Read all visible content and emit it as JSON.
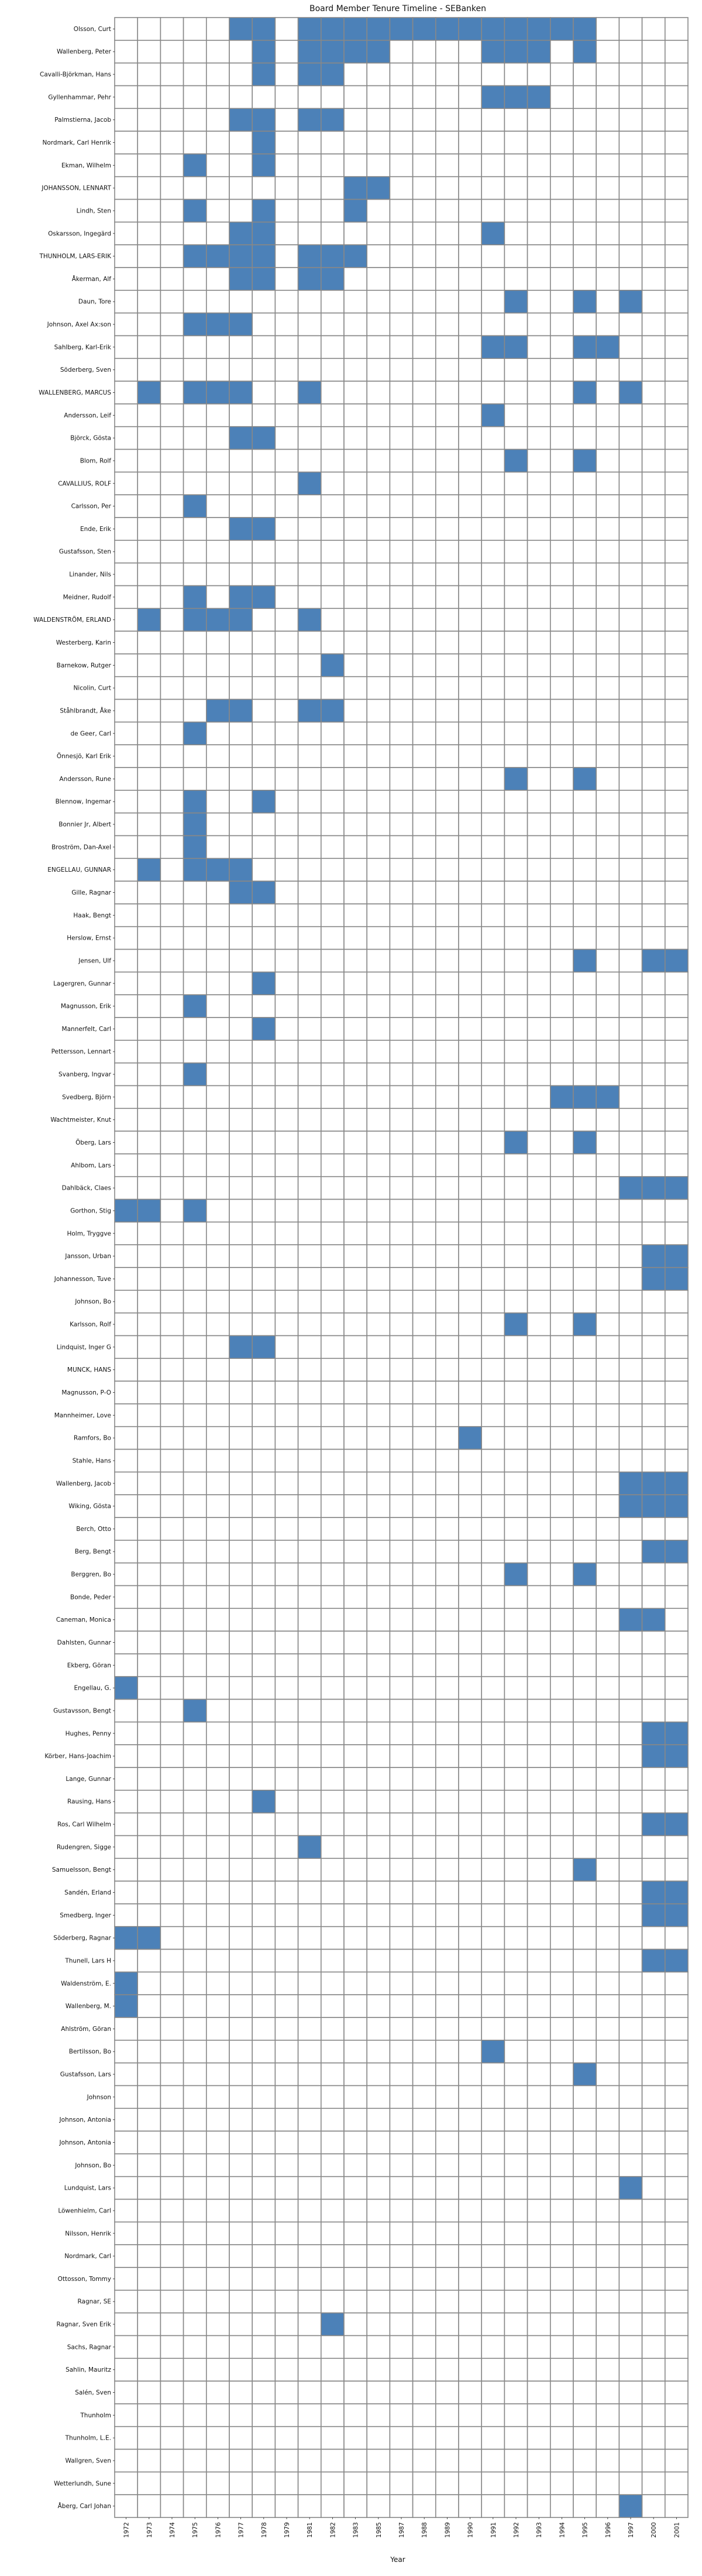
{
  "chart_data": {
    "type": "heatmap",
    "title": "Board Member Tenure Timeline - SEBanken",
    "xlabel": "Year",
    "ylabel": "",
    "x": [
      "1972",
      "1973",
      "1974",
      "1975",
      "1976",
      "1977",
      "1978",
      "1979",
      "1981",
      "1982",
      "1983",
      "1985",
      "1987",
      "1988",
      "1989",
      "1990",
      "1991",
      "1992",
      "1993",
      "1994",
      "1995",
      "1996",
      "1997",
      "2000",
      "2001"
    ],
    "colors": {
      "active": "#4c81b8",
      "inactive": "#ffffff",
      "grid": "#888888"
    },
    "rows": [
      {
        "name": "Olsson, Curt",
        "years": [
          "1977",
          "1978",
          "1981",
          "1982",
          "1983",
          "1985",
          "1987",
          "1988",
          "1989",
          "1990",
          "1991",
          "1992",
          "1993",
          "1994",
          "1995"
        ]
      },
      {
        "name": "Wallenberg, Peter",
        "years": [
          "1978",
          "1981",
          "1982",
          "1983",
          "1985",
          "1991",
          "1992",
          "1993",
          "1995"
        ]
      },
      {
        "name": "Cavalli-Björkman, Hans",
        "years": [
          "1978",
          "1981",
          "1982"
        ]
      },
      {
        "name": "Gyllenhammar, Pehr",
        "years": [
          "1991",
          "1992",
          "1993"
        ]
      },
      {
        "name": "Palmstierna, Jacob",
        "years": [
          "1977",
          "1978",
          "1981",
          "1982"
        ]
      },
      {
        "name": "Nordmark, Carl Henrik",
        "years": [
          "1978"
        ]
      },
      {
        "name": "Ekman, Wilhelm",
        "years": [
          "1975",
          "1978"
        ]
      },
      {
        "name": "JOHANSSON, LENNART",
        "years": [
          "1983",
          "1985"
        ]
      },
      {
        "name": "Lindh, Sten",
        "years": [
          "1975",
          "1978",
          "1983"
        ]
      },
      {
        "name": "Oskarsson, Ingegärd",
        "years": [
          "1977",
          "1978",
          "1991"
        ]
      },
      {
        "name": "THUNHOLM, LARS-ERIK",
        "years": [
          "1975",
          "1976",
          "1977",
          "1978",
          "1981",
          "1982",
          "1983"
        ]
      },
      {
        "name": "Åkerman, Alf",
        "years": [
          "1977",
          "1978",
          "1981",
          "1982"
        ]
      },
      {
        "name": "Daun, Tore",
        "years": [
          "1992",
          "1995",
          "1997"
        ]
      },
      {
        "name": "Johnson, Axel Ax:son",
        "years": [
          "1975",
          "1976",
          "1977"
        ]
      },
      {
        "name": "Sahlberg, Karl-Erik",
        "years": [
          "1991",
          "1992",
          "1995",
          "1996"
        ]
      },
      {
        "name": "Söderberg, Sven",
        "years": []
      },
      {
        "name": "WALLENBERG, MARCUS",
        "years": [
          "1973",
          "1975",
          "1976",
          "1977",
          "1981",
          "1995",
          "1997"
        ]
      },
      {
        "name": "Andersson, Leif",
        "years": [
          "1991"
        ]
      },
      {
        "name": "Björck, Gösta",
        "years": [
          "1977",
          "1978"
        ]
      },
      {
        "name": "Blom, Rolf",
        "years": [
          "1992",
          "1995"
        ]
      },
      {
        "name": "CAVALLIUS, ROLF",
        "years": [
          "1981"
        ]
      },
      {
        "name": "Carlsson, Per",
        "years": [
          "1975"
        ]
      },
      {
        "name": "Ende, Erik",
        "years": [
          "1977",
          "1978"
        ]
      },
      {
        "name": "Gustafsson, Sten",
        "years": []
      },
      {
        "name": "Linander, Nils",
        "years": []
      },
      {
        "name": "Meidner, Rudolf",
        "years": [
          "1975",
          "1977",
          "1978"
        ]
      },
      {
        "name": "WALDENSTRÖM, ERLAND",
        "years": [
          "1973",
          "1975",
          "1976",
          "1977",
          "1981"
        ]
      },
      {
        "name": "Westerberg, Karin",
        "years": []
      },
      {
        "name": "Barnekow, Rutger",
        "years": [
          "1982"
        ]
      },
      {
        "name": "Nicolin, Curt",
        "years": []
      },
      {
        "name": "Ståhlbrandt, Åke",
        "years": [
          "1976",
          "1977",
          "1981",
          "1982"
        ]
      },
      {
        "name": "de Geer, Carl",
        "years": [
          "1975"
        ]
      },
      {
        "name": "Önnesjö, Karl Erik",
        "years": []
      },
      {
        "name": "Andersson, Rune",
        "years": [
          "1992",
          "1995"
        ]
      },
      {
        "name": "Blennow, Ingemar",
        "years": [
          "1975",
          "1978"
        ]
      },
      {
        "name": "Bonnier Jr, Albert",
        "years": [
          "1975"
        ]
      },
      {
        "name": "Broström, Dan-Axel",
        "years": [
          "1975"
        ]
      },
      {
        "name": "ENGELLAU, GUNNAR",
        "years": [
          "1973",
          "1975",
          "1976",
          "1977"
        ]
      },
      {
        "name": "Gille, Ragnar",
        "years": [
          "1977",
          "1978"
        ]
      },
      {
        "name": "Haak, Bengt",
        "years": []
      },
      {
        "name": "Herslow, Ernst",
        "years": []
      },
      {
        "name": "Jensen, Ulf",
        "years": [
          "1995",
          "2000",
          "2001"
        ]
      },
      {
        "name": "Lagergren, Gunnar",
        "years": [
          "1978"
        ]
      },
      {
        "name": "Magnusson, Erik",
        "years": [
          "1975"
        ]
      },
      {
        "name": "Mannerfelt, Carl",
        "years": [
          "1978"
        ]
      },
      {
        "name": "Pettersson, Lennart",
        "years": []
      },
      {
        "name": "Svanberg, Ingvar",
        "years": [
          "1975"
        ]
      },
      {
        "name": "Svedberg, Björn",
        "years": [
          "1994",
          "1995",
          "1996"
        ]
      },
      {
        "name": "Wachtmeister, Knut",
        "years": []
      },
      {
        "name": "Öberg, Lars",
        "years": [
          "1992",
          "1995"
        ]
      },
      {
        "name": "Ahlbom, Lars",
        "years": []
      },
      {
        "name": "Dahlbäck, Claes",
        "years": [
          "1997",
          "2000",
          "2001"
        ]
      },
      {
        "name": "Gorthon, Stig",
        "years": [
          "1972",
          "1973",
          "1975"
        ]
      },
      {
        "name": "Holm, Tryggve",
        "years": []
      },
      {
        "name": "Jansson, Urban",
        "years": [
          "2000",
          "2001"
        ]
      },
      {
        "name": "Johannesson, Tuve",
        "years": [
          "2000",
          "2001"
        ]
      },
      {
        "name": "Johnson, Bo",
        "years": []
      },
      {
        "name": "Karlsson, Rolf",
        "years": [
          "1992",
          "1995"
        ]
      },
      {
        "name": "Lindquist, Inger G",
        "years": [
          "1977",
          "1978"
        ]
      },
      {
        "name": "MUNCK, HANS",
        "years": []
      },
      {
        "name": "Magnusson, P-O",
        "years": []
      },
      {
        "name": "Mannheimer, Love",
        "years": []
      },
      {
        "name": "Ramfors, Bo",
        "years": [
          "1990"
        ]
      },
      {
        "name": "Stahle, Hans",
        "years": []
      },
      {
        "name": "Wallenberg, Jacob",
        "years": [
          "1997",
          "2000",
          "2001"
        ]
      },
      {
        "name": "Wiking, Gösta",
        "years": [
          "1997",
          "2000",
          "2001"
        ]
      },
      {
        "name": "Berch, Otto",
        "years": []
      },
      {
        "name": "Berg, Bengt",
        "years": [
          "2000",
          "2001"
        ]
      },
      {
        "name": "Berggren, Bo",
        "years": [
          "1992",
          "1995"
        ]
      },
      {
        "name": "Bonde, Peder",
        "years": []
      },
      {
        "name": "Caneman, Monica",
        "years": [
          "1997",
          "2000"
        ]
      },
      {
        "name": "Dahlsten, Gunnar",
        "years": []
      },
      {
        "name": "Ekberg, Göran",
        "years": []
      },
      {
        "name": "Engellau, G.",
        "years": [
          "1972"
        ]
      },
      {
        "name": "Gustavsson, Bengt",
        "years": [
          "1975"
        ]
      },
      {
        "name": "Hughes, Penny",
        "years": [
          "2000",
          "2001"
        ]
      },
      {
        "name": "Körber, Hans-Joachim",
        "years": [
          "2000",
          "2001"
        ]
      },
      {
        "name": "Lange, Gunnar",
        "years": []
      },
      {
        "name": "Rausing, Hans",
        "years": [
          "1978"
        ]
      },
      {
        "name": "Ros, Carl Wilhelm",
        "years": [
          "2000",
          "2001"
        ]
      },
      {
        "name": "Rudengren, Sigge",
        "years": [
          "1981"
        ]
      },
      {
        "name": "Samuelsson, Bengt",
        "years": [
          "1995"
        ]
      },
      {
        "name": "Sandén, Erland",
        "years": [
          "2000",
          "2001"
        ]
      },
      {
        "name": "Smedberg, Inger",
        "years": [
          "2000",
          "2001"
        ]
      },
      {
        "name": "Söderberg, Ragnar",
        "years": [
          "1972",
          "1973"
        ]
      },
      {
        "name": "Thunell, Lars H",
        "years": [
          "2000",
          "2001"
        ]
      },
      {
        "name": "Waldenström, E.",
        "years": [
          "1972"
        ]
      },
      {
        "name": "Wallenberg, M.",
        "years": [
          "1972"
        ]
      },
      {
        "name": "Ahlström, Göran",
        "years": []
      },
      {
        "name": "Bertilsson, Bo",
        "years": [
          "1991"
        ]
      },
      {
        "name": "Gustafsson, Lars",
        "years": [
          "1995"
        ]
      },
      {
        "name": "Johnson",
        "years": []
      },
      {
        "name": "Johnson, Antonia",
        "years": []
      },
      {
        "name": "Johnson, Antonia",
        "years": []
      },
      {
        "name": "Johnson, Bo",
        "years": []
      },
      {
        "name": "Lundquist, Lars",
        "years": [
          "1997"
        ]
      },
      {
        "name": "Löwenhielm, Carl",
        "years": []
      },
      {
        "name": "Nilsson, Henrik",
        "years": []
      },
      {
        "name": "Nordmark, Carl",
        "years": []
      },
      {
        "name": "Ottosson, Tommy",
        "years": []
      },
      {
        "name": "Ragnar, SE",
        "years": []
      },
      {
        "name": "Ragnar, Sven Erik",
        "years": [
          "1982"
        ]
      },
      {
        "name": "Sachs, Ragnar",
        "years": []
      },
      {
        "name": "Sahlin, Mauritz",
        "years": []
      },
      {
        "name": "Salén, Sven",
        "years": []
      },
      {
        "name": "Thunholm",
        "years": []
      },
      {
        "name": "Thunholm, L.E.",
        "years": []
      },
      {
        "name": "Wallgren, Sven",
        "years": []
      },
      {
        "name": "Wetterlundh, Sune",
        "years": []
      },
      {
        "name": "Åberg, Carl Johan",
        "years": [
          "1997"
        ]
      }
    ]
  }
}
